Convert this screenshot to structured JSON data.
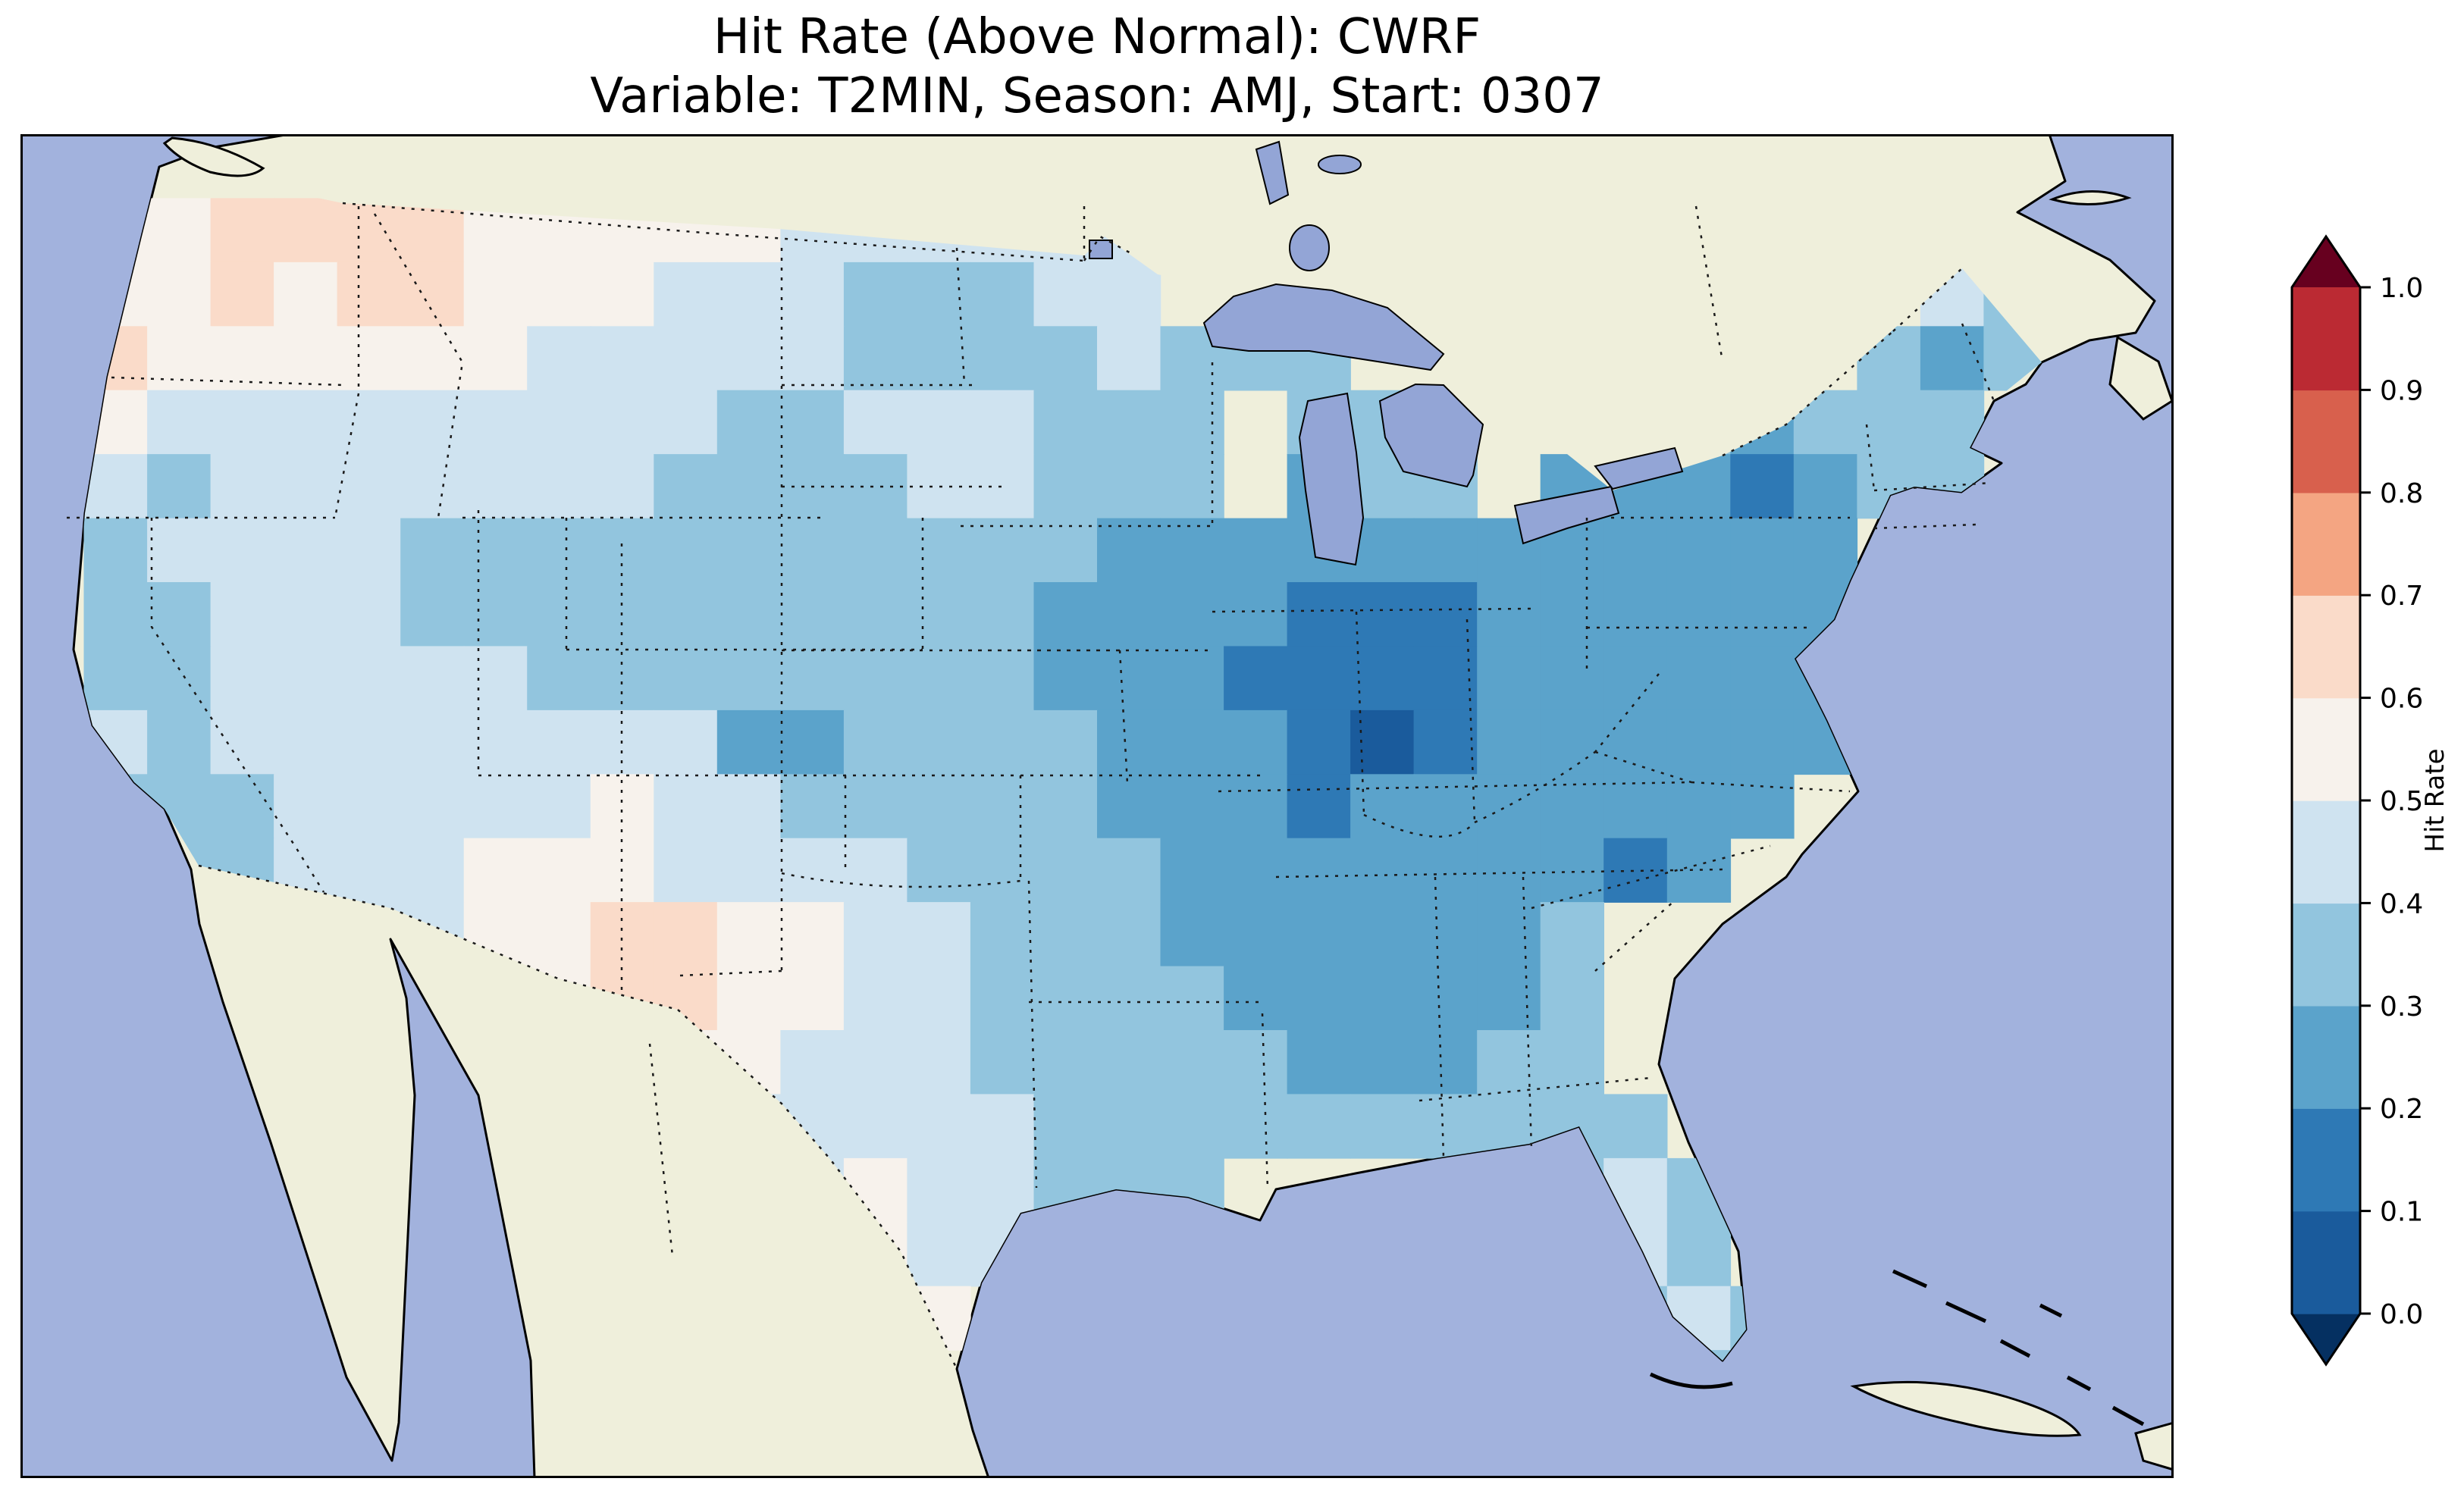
{
  "figure": {
    "title_line1": "Hit Rate (Above Normal): CWRF",
    "title_line2": "Variable: T2MIN, Season: AMJ, Start: 0307"
  },
  "colorbar": {
    "label": "Hit Rate",
    "tick_labels": [
      "0.0",
      "0.1",
      "0.2",
      "0.3",
      "0.4",
      "0.5",
      "0.6",
      "0.7",
      "0.8",
      "0.9",
      "1.0"
    ],
    "bin_colors": [
      "#1a5b9c",
      "#2e79b5",
      "#5ba3cb",
      "#92c5de",
      "#cfe3f0",
      "#f7f2ec",
      "#fadbc9",
      "#f4a582",
      "#d8604d",
      "#bb2a33"
    ],
    "under_arrow_color": "#053061",
    "over_arrow_color": "#67001f",
    "outline_color": "#000000"
  },
  "map_colors": {
    "ocean": "#a2b2dd",
    "land": "#efefdb",
    "lake": "#93a5d6",
    "coastline": "#000000",
    "borders": "#1a1a1a"
  },
  "chart_data": {
    "type": "heatmap",
    "title": "Hit Rate (Above Normal): CWRF",
    "subtitle": "Variable: T2MIN, Season: AMJ, Start: 0307",
    "model": "CWRF",
    "variable": "T2MIN",
    "season": "AMJ",
    "start_date": "0307",
    "colorbar_label": "Hit Rate",
    "colormap": "RdBu_r, 10 discrete bins from 0.0 to 1.0, pointed extension arrows at both ends",
    "bin_edges": [
      0.0,
      0.1,
      0.2,
      0.3,
      0.4,
      0.5,
      0.6,
      0.7,
      0.8,
      0.9,
      1.0
    ],
    "value_range_shown": [
      0.0,
      1.0
    ],
    "grid": {
      "ncols": 34,
      "nrows": 21,
      "cell_encoding": "digit d = hit rate in [d/10,(d+1)/10); '.' = outside CONUS data domain",
      "rows": [
        "..................................",
        ".55666655555444444................",
        ".55656655544433344............43..",
        ".65555554444433334333........323..",
        ".544444444433444333.33....32333...",
        ".434444444333344333.233.2221233...",
        ".3444433333333333222222222222.....",
        ".3344433333333332222111222222.....",
        ".3344444333333332221111222222.....",
        ".4344444444223333222101222222.....",
        ".333444445443333322212222222......",
        "..3344455544443333222222212.......",
        "....444556655443332222223.........",
        ".......556655443333222223.........",
        "..........554443333322233.........",
        "...........444443333333333........",
        "............4544333.....343.......",
        ".............544.........43.......",
        "..............5..........343......",
        "..........................3.......",
        ".................................."
      ]
    },
    "region_summary": [
      "Lowest hit rates 0.0-0.2 (dark blue) centered on Indiana/Ohio/Kentucky, with small minima in southern New York and coastal South Carolina",
      "Southeast and mid-Atlantic broadly 0.2-0.3",
      "Great Plains, upper Midwest and interior West mostly 0.3-0.5",
      "Pacific Northwest, northern Rockies and west Texas/New Mexico 0.5-0.7 (white to pale red)",
      "No region reaches the red (>0.7) end of the scale"
    ]
  }
}
